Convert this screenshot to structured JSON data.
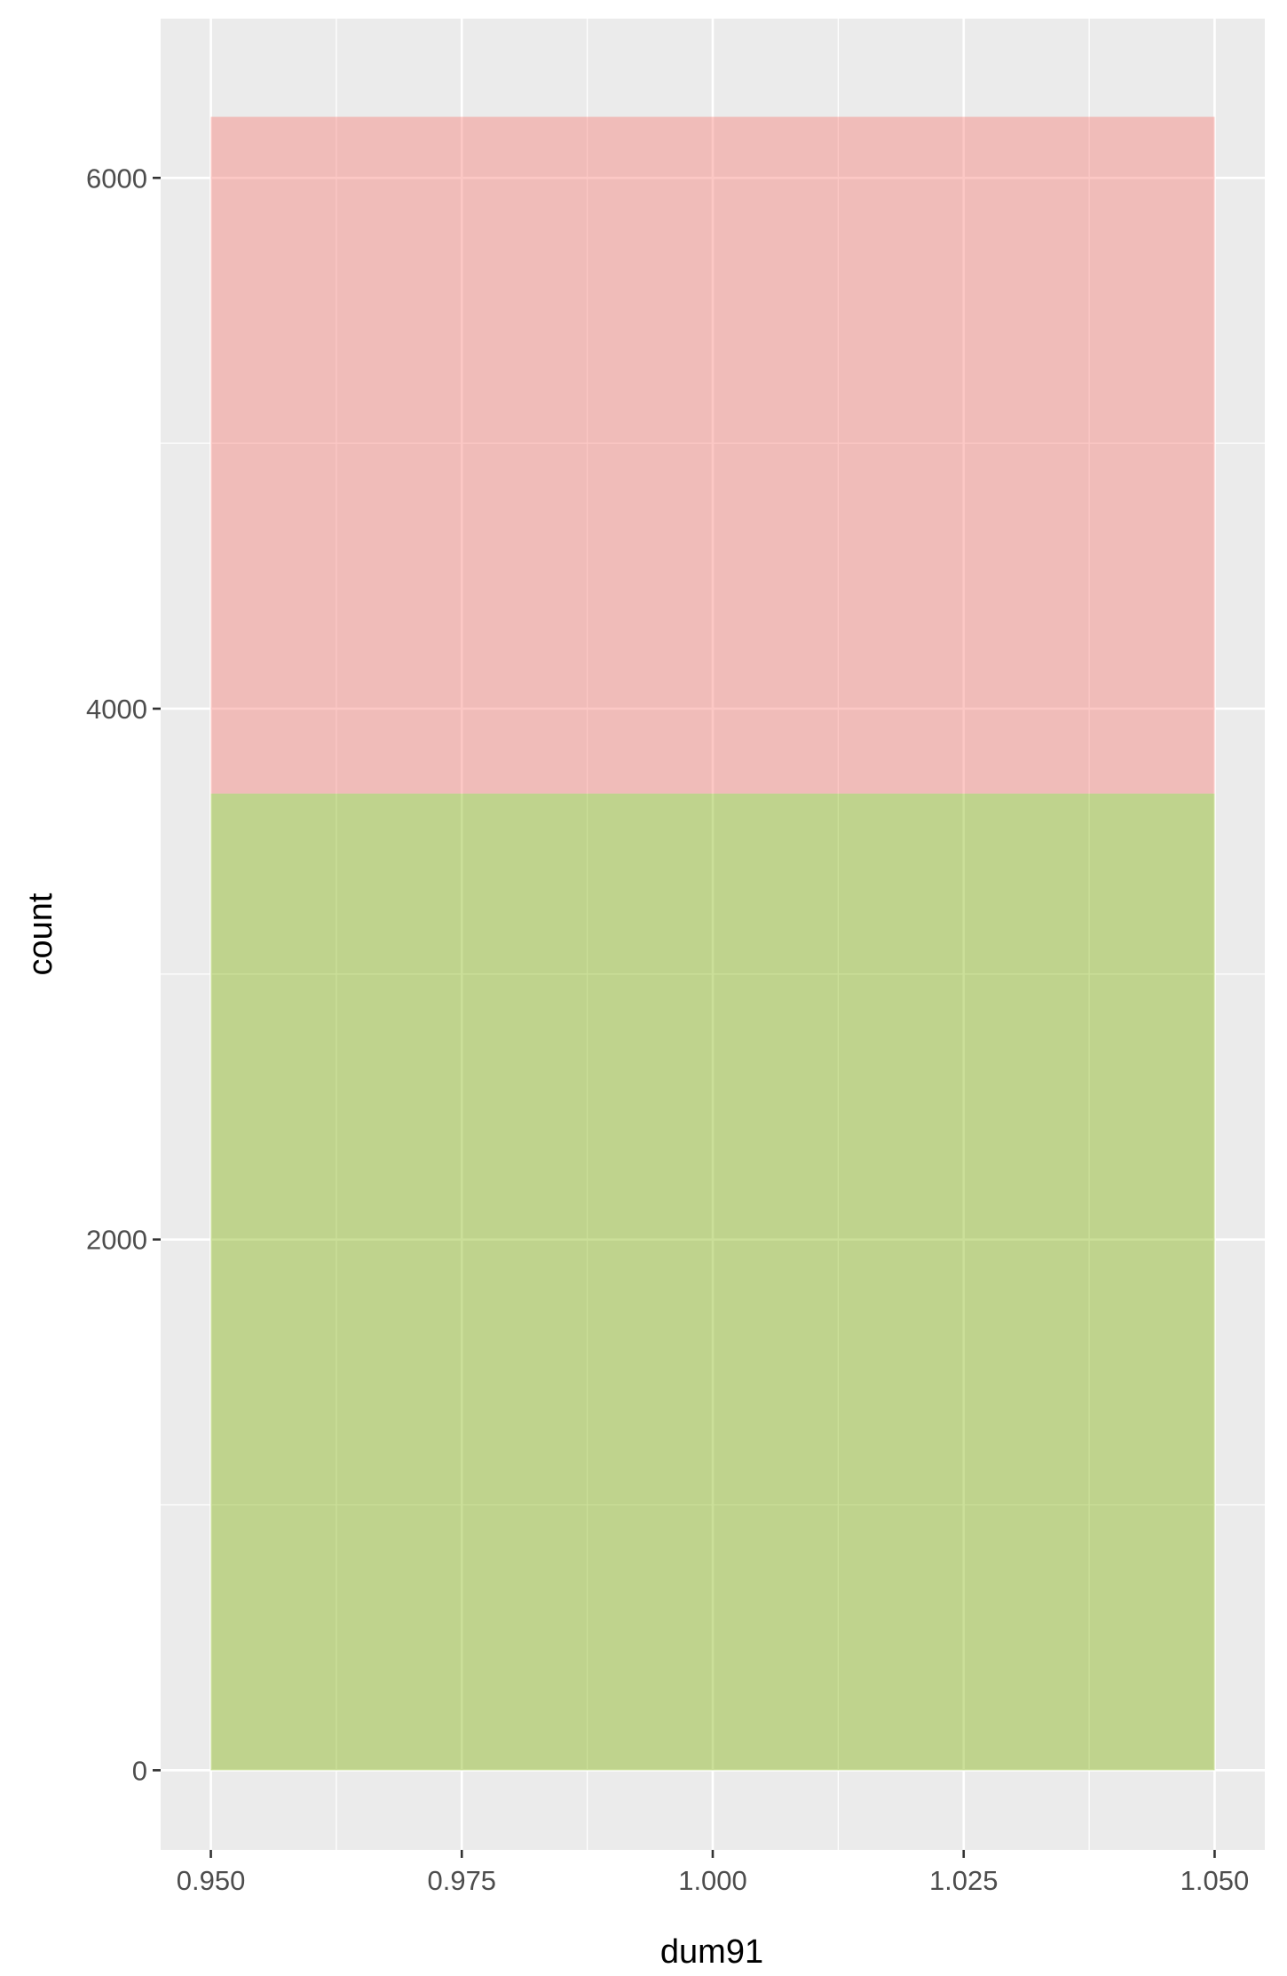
{
  "chart_data": {
    "type": "histogram",
    "xlabel": "dum91",
    "ylabel": "count",
    "x_ticks": [
      "0.950",
      "0.975",
      "1.000",
      "1.025",
      "1.050"
    ],
    "y_ticks": [
      "0",
      "2000",
      "4000",
      "6000"
    ],
    "xlim": [
      0.945,
      1.055
    ],
    "ylim": [
      -300,
      6600
    ],
    "grid": true,
    "legend": "none",
    "colors": {
      "panel": "#ebebeb",
      "grid": "#ffffff",
      "red_fill": "#f8766d",
      "green_fill": "#7cae00"
    },
    "bars": [
      {
        "group": "red",
        "xmin": 0.95,
        "xmax": 1.05,
        "ymin": 3680,
        "ymax": 6230
      },
      {
        "group": "green",
        "xmin": 0.95,
        "xmax": 1.05,
        "ymin": 0,
        "ymax": 3680
      }
    ]
  }
}
